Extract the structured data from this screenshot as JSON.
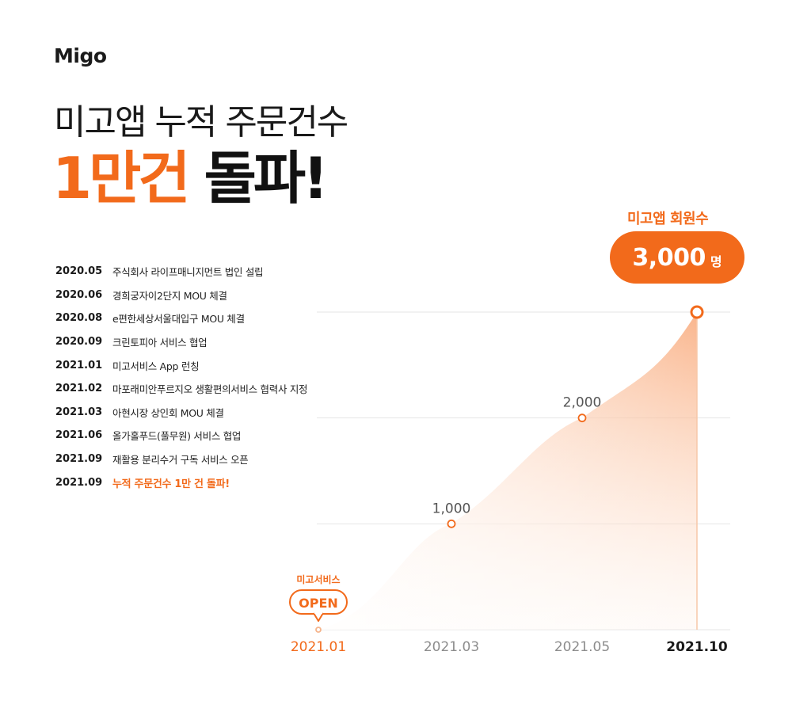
{
  "brand": {
    "logo": "Migo",
    "accent_color": "#f26a1b"
  },
  "headline": {
    "line1": "미고앱 누적 주문건수",
    "line2_accent": "1만건",
    "line2_dark": "돌파!"
  },
  "timeline": [
    {
      "date": "2020.05",
      "event": "주식회사 라이프매니지먼트 법인 설립"
    },
    {
      "date": "2020.06",
      "event": "경희궁자이2단지 MOU 체결"
    },
    {
      "date": "2020.08",
      "event": "e편한세상서울대입구 MOU 체결"
    },
    {
      "date": "2020.09",
      "event": "크린토피아 서비스 협업"
    },
    {
      "date": "2021.01",
      "event": "미고서비스 App 런칭"
    },
    {
      "date": "2021.02",
      "event": "마포래미안푸르지오 생활편의서비스 협력사 지정"
    },
    {
      "date": "2021.03",
      "event": "아현시장 상인회 MOU 체결"
    },
    {
      "date": "2021.06",
      "event": "올가홀푸드(풀무원) 서비스 협업"
    },
    {
      "date": "2021.09",
      "event": "재활용 분리수거 구독 서비스 오픈"
    },
    {
      "date": "2021.09",
      "event": "누적 주문건수 1만 건 돌파!"
    }
  ],
  "members": {
    "label": "미고앱 회원수",
    "value": "3,000",
    "unit": "명"
  },
  "open_callout": {
    "caption": "미고서비스",
    "text": "OPEN"
  },
  "chart_data": {
    "type": "area",
    "categories": [
      "2021.01",
      "2021.03",
      "2021.05",
      "2021.10"
    ],
    "values": [
      0,
      1000,
      2000,
      3000
    ],
    "data_labels": [
      "",
      "1,000",
      "2,000",
      ""
    ],
    "ylim": [
      0,
      3000
    ],
    "grid": true
  }
}
